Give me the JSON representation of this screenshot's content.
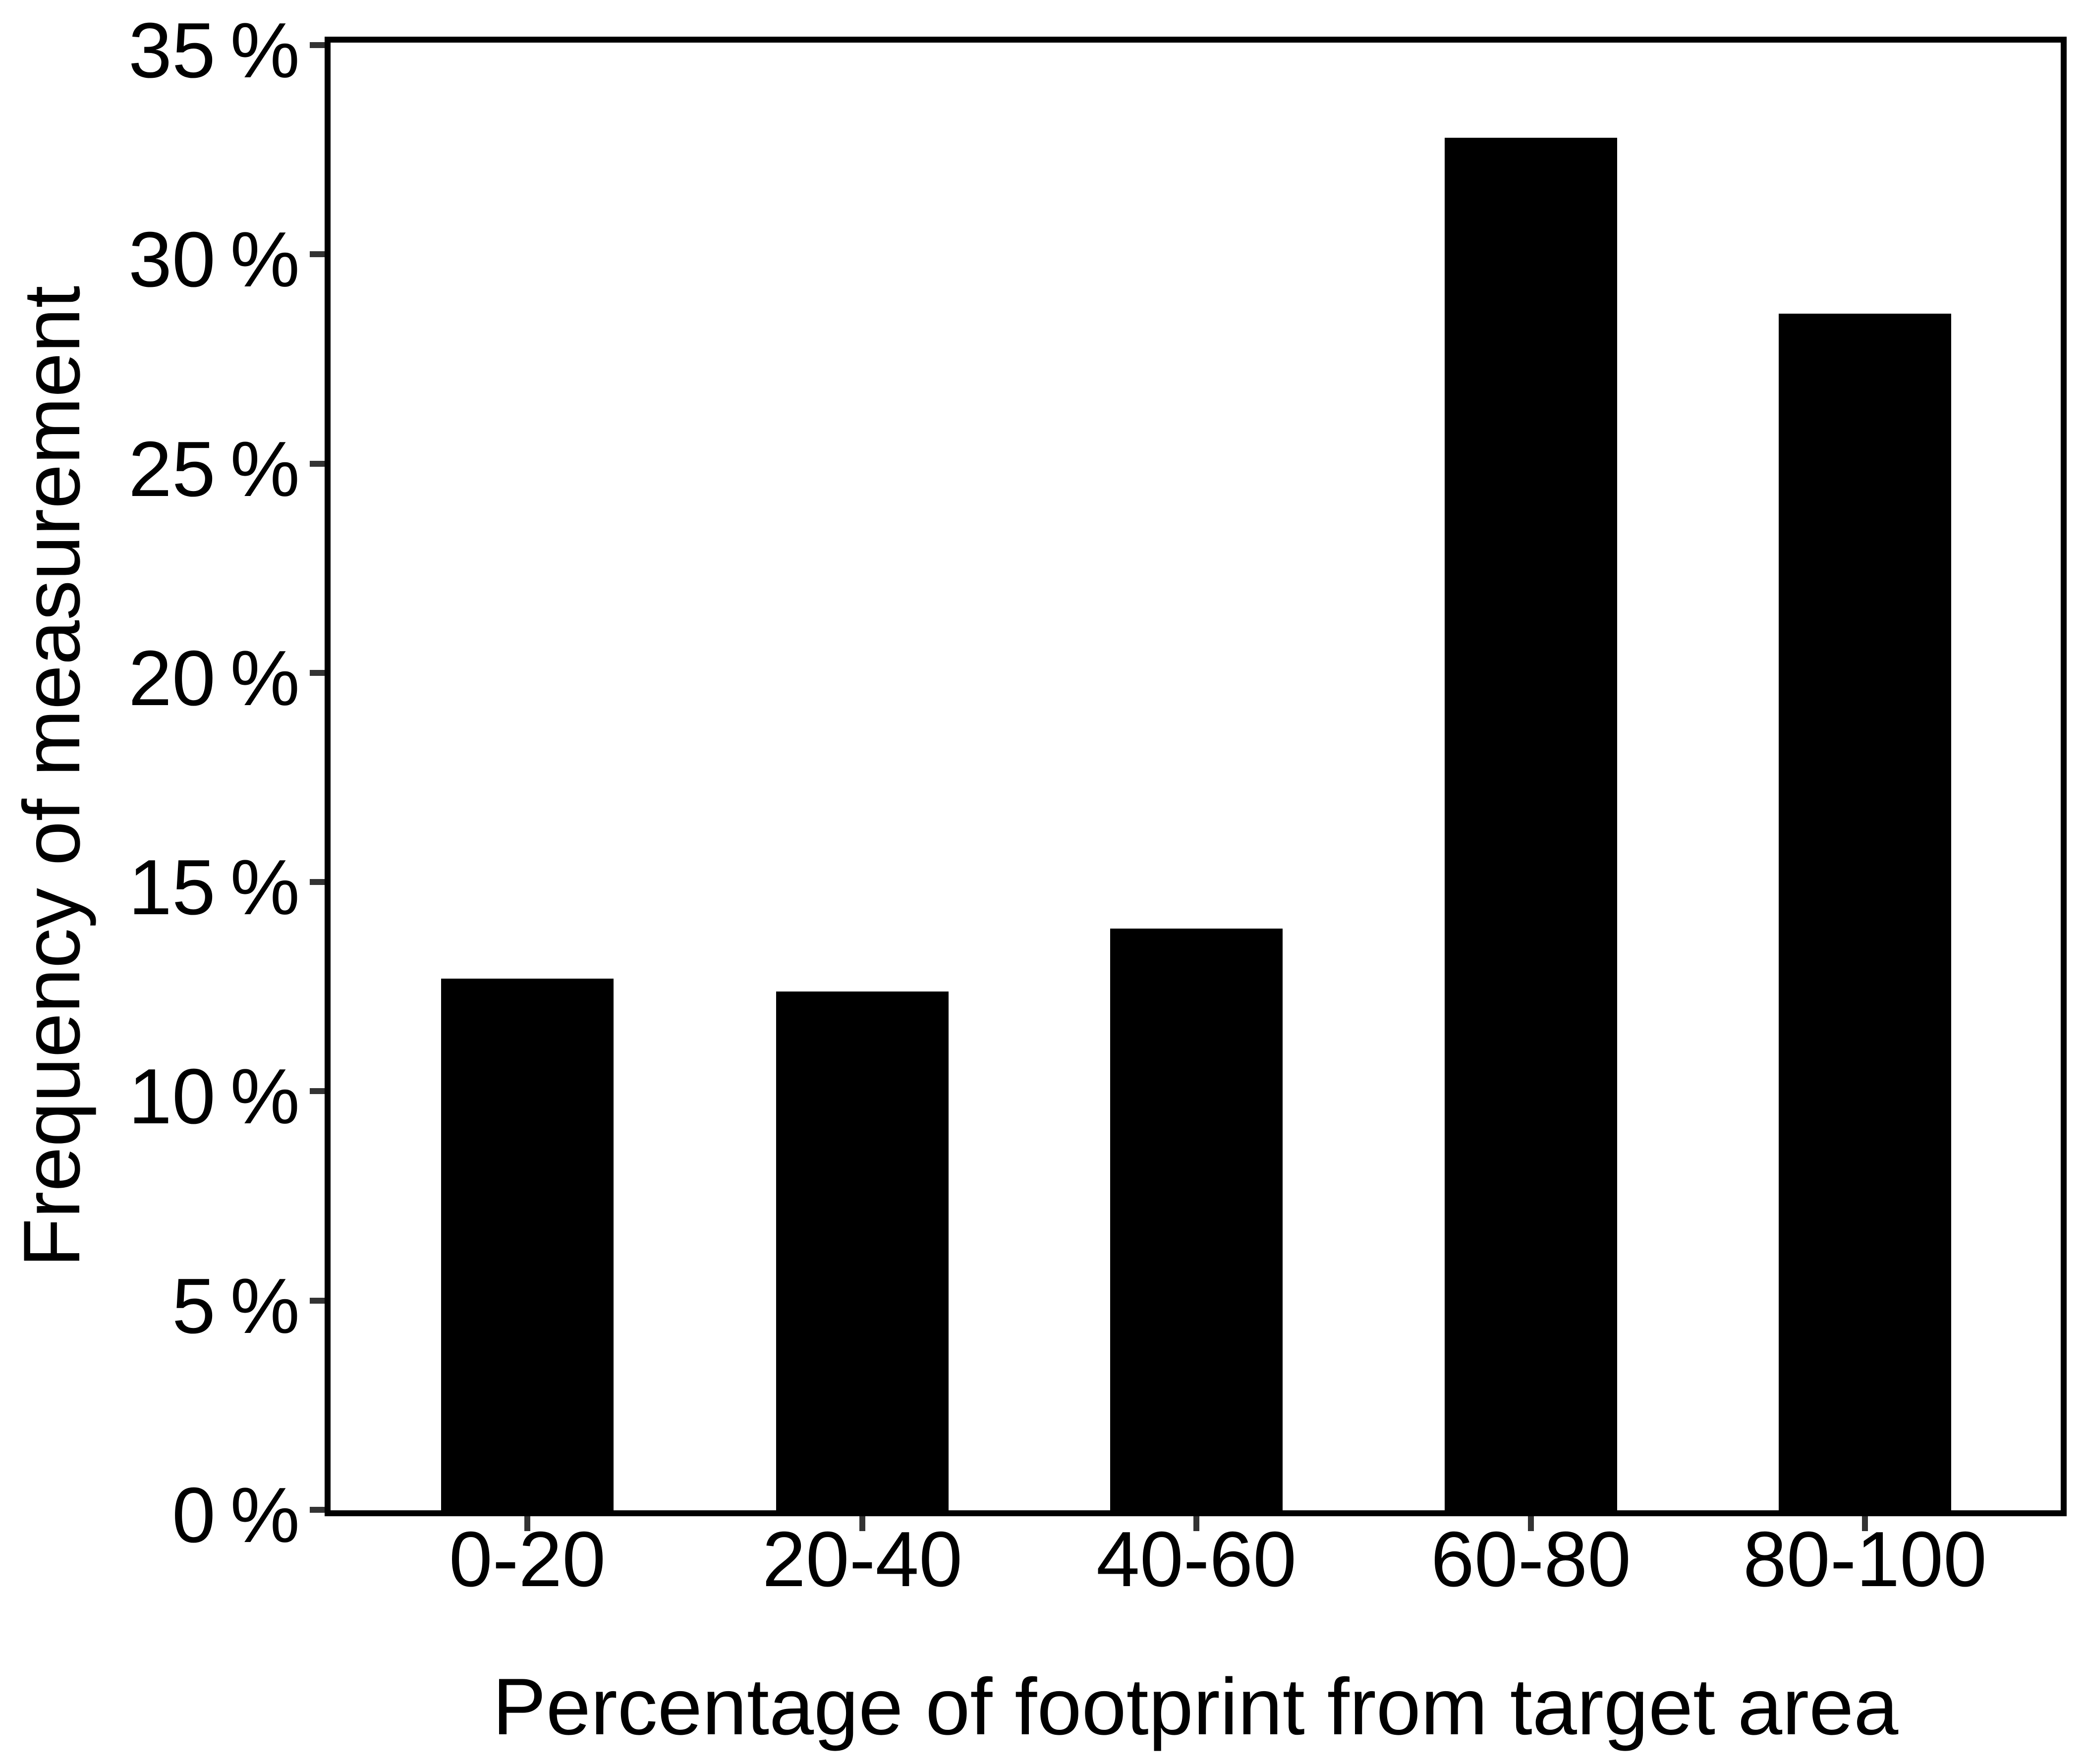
{
  "chart_data": {
    "type": "bar",
    "title": "",
    "categories": [
      "0-20",
      "20-40",
      "40-60",
      "60-80",
      "80-100"
    ],
    "values": [
      12.7,
      12.4,
      13.9,
      32.8,
      28.6
    ],
    "xlabel": "Percentage of footprint from target area",
    "ylabel": "Frequency of measurement",
    "y_tick_labels": [
      "0 %",
      "5 %",
      "10 %",
      "15 %",
      "20 %",
      "25 %",
      "30 %",
      "35 %"
    ],
    "y_tick_values": [
      0,
      5,
      10,
      15,
      20,
      25,
      30,
      35
    ],
    "ylim": [
      0,
      35.1
    ],
    "bar_color": "#000000",
    "tick_color": "#333333",
    "background_color": "#ffffff",
    "grid": false,
    "legend": false,
    "panel_border": "full-box"
  }
}
